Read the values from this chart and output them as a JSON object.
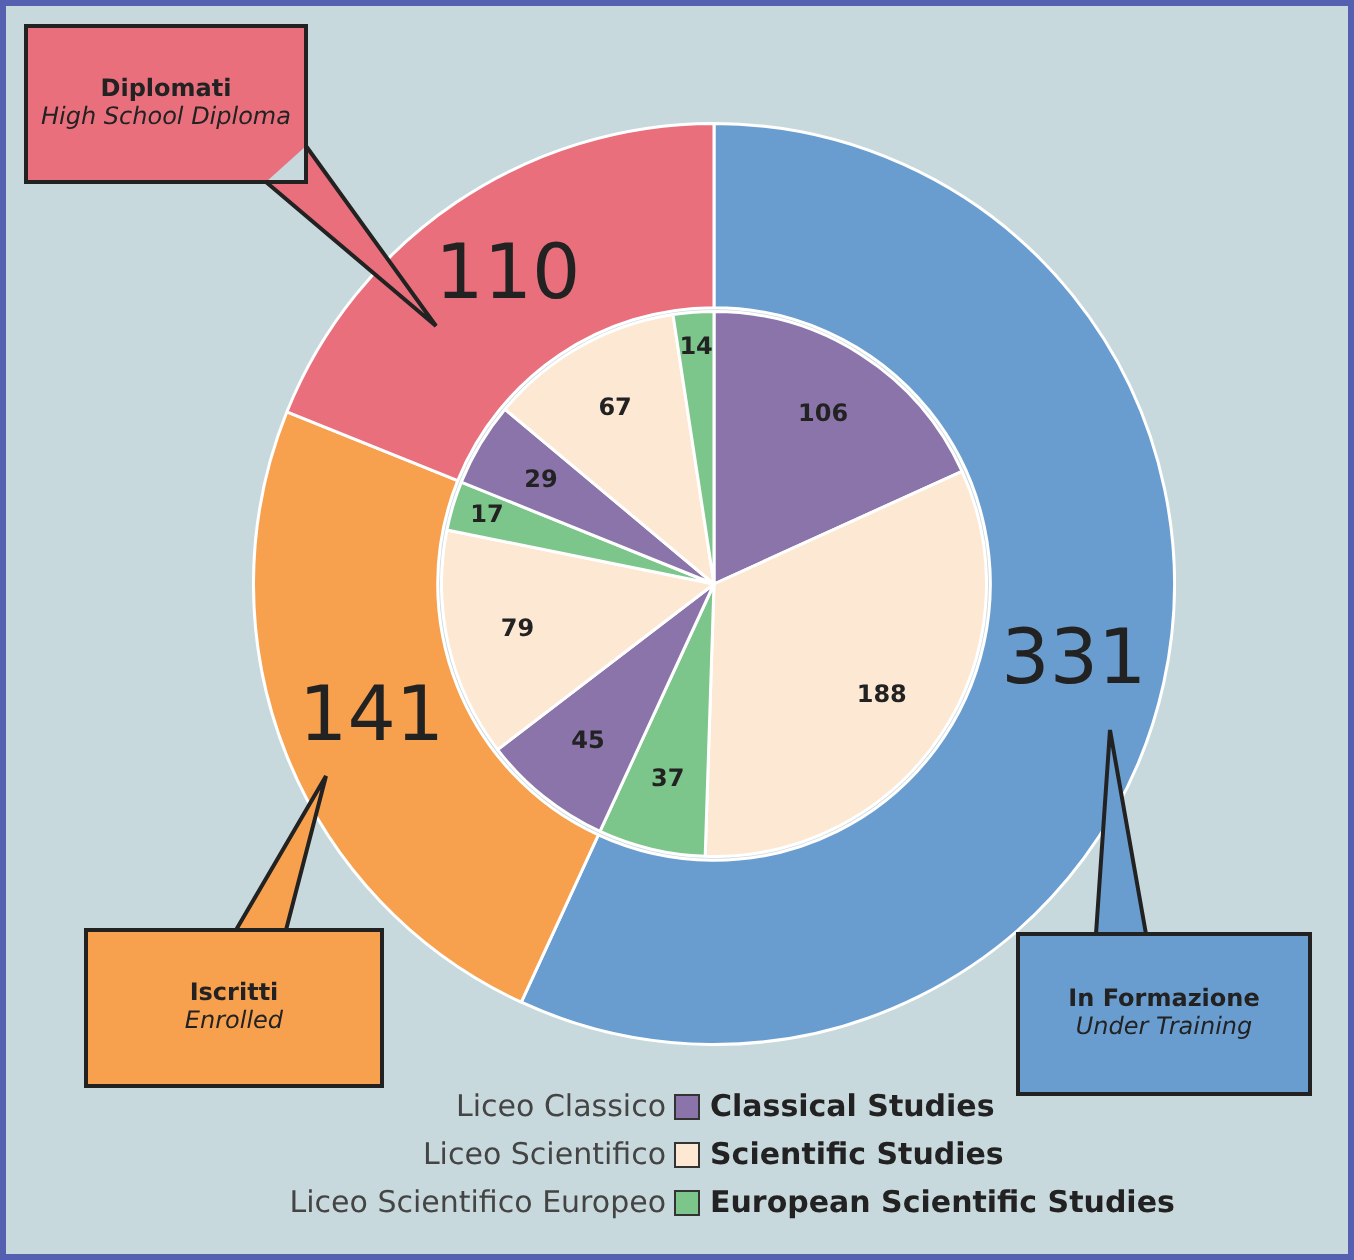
{
  "chart_data": [
    {
      "type": "donut",
      "categories": [
        "In Formazione\nUnder Training",
        "Iscritti\nEnrolled",
        "Diplomati\nHigh School Diploma"
      ],
      "values": [
        331,
        141,
        110
      ],
      "colors": [
        "#6a9dcf",
        "#f7a04e",
        "#e96f7c"
      ],
      "data_labels": true
    },
    {
      "type": "pie",
      "categories": [
        "Liceo Classico\nClassical Studies",
        "Liceo Scientifico\nScientific Studies",
        "Liceo Scientifico Europeo\nEuropean Scientific Studies",
        null,
        null,
        null,
        null,
        null,
        null
      ],
      "values": [
        106,
        188,
        37,
        45,
        79,
        17,
        29,
        67,
        14
      ],
      "colors": [
        "#8b74aa",
        "#fde9d3",
        "#7cc68c",
        "#8b74aa",
        "#fde9d3",
        "#7cc68c",
        "#8b74aa",
        "#fde9d3",
        "#7cc68c"
      ],
      "data_labels": true
    }
  ]
}
